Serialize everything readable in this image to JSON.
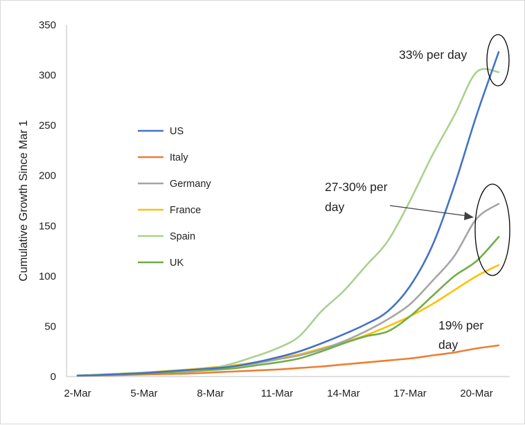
{
  "chart_data": {
    "type": "line",
    "title": "",
    "xlabel": "",
    "ylabel": "Cumulative Growth Since Mar 1",
    "ylim": [
      0,
      350
    ],
    "yticks": [
      0,
      50,
      100,
      150,
      200,
      250,
      300,
      350
    ],
    "x": [
      "2-Mar",
      "3-Mar",
      "4-Mar",
      "5-Mar",
      "6-Mar",
      "7-Mar",
      "8-Mar",
      "9-Mar",
      "10-Mar",
      "11-Mar",
      "12-Mar",
      "13-Mar",
      "14-Mar",
      "15-Mar",
      "16-Mar",
      "17-Mar",
      "18-Mar",
      "19-Mar",
      "20-Mar",
      "21-Mar"
    ],
    "xtick_labels": [
      "2-Mar",
      "5-Mar",
      "8-Mar",
      "11-Mar",
      "14-Mar",
      "17-Mar",
      "20-Mar"
    ],
    "grid": false,
    "legend_position": "left",
    "series": [
      {
        "name": "US",
        "color": "#4472c4",
        "values": [
          1,
          1.5,
          2.5,
          3.5,
          5,
          6.5,
          8,
          10,
          14,
          19,
          25,
          33,
          42,
          52,
          65,
          90,
          130,
          190,
          260,
          323
        ]
      },
      {
        "name": "Italy",
        "color": "#ed7d31",
        "values": [
          1,
          1.2,
          1.5,
          2,
          2.5,
          3,
          4,
          5,
          6,
          7,
          8.5,
          10,
          12,
          14,
          16,
          18,
          21,
          24,
          28,
          31
        ]
      },
      {
        "name": "Germany",
        "color": "#a5a5a5",
        "values": [
          1,
          1.5,
          2.5,
          3.5,
          4.5,
          6,
          7.5,
          10,
          13,
          17,
          21,
          27,
          35,
          45,
          57,
          72,
          95,
          120,
          157,
          172
        ]
      },
      {
        "name": "France",
        "color": "#ffc000",
        "values": [
          1,
          2,
          3,
          4,
          5.5,
          7,
          9,
          11,
          14,
          18,
          22,
          28,
          34,
          41,
          50,
          60,
          72,
          86,
          100,
          111
        ]
      },
      {
        "name": "Spain",
        "color": "#a9d18e",
        "values": [
          1,
          2,
          3,
          4,
          5,
          6,
          8,
          13,
          20,
          28,
          40,
          65,
          85,
          110,
          135,
          175,
          220,
          260,
          303,
          303
        ]
      },
      {
        "name": "UK",
        "color": "#70ad47",
        "values": [
          1,
          1.5,
          2.5,
          3,
          4,
          5,
          6.5,
          8,
          11,
          14,
          18,
          25,
          33,
          40,
          45,
          60,
          80,
          100,
          115,
          139
        ]
      }
    ],
    "annotations": [
      {
        "text_lines": [
          "33% per day"
        ]
      },
      {
        "text_lines": [
          "27-30% per",
          "day"
        ]
      },
      {
        "text_lines": [
          "19% per",
          "day"
        ]
      }
    ]
  }
}
